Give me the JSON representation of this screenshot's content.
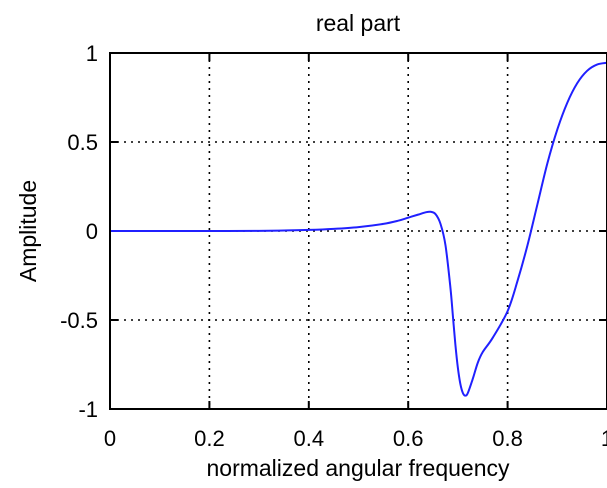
{
  "chart_data": {
    "type": "line",
    "title": "real part",
    "xlabel": "normalized angular frequency",
    "ylabel": "Amplitude",
    "xlim": [
      0,
      1
    ],
    "ylim": [
      -1,
      1
    ],
    "xticks": [
      0,
      0.2,
      0.4,
      0.6,
      0.8,
      1
    ],
    "xtick_labels": [
      "0",
      "0.2",
      "0.4",
      "0.6",
      "0.8",
      "1"
    ],
    "yticks": [
      -1,
      -0.5,
      0,
      0.5,
      1
    ],
    "ytick_labels": [
      "-1",
      "-0.5",
      "0",
      "0.5",
      "1"
    ],
    "grid": true,
    "series": [
      {
        "color": "#2020ff",
        "x": [
          0,
          0.1,
          0.2,
          0.3,
          0.35,
          0.4,
          0.45,
          0.5,
          0.55,
          0.58,
          0.6,
          0.62,
          0.635,
          0.645,
          0.655,
          0.665,
          0.675,
          0.685,
          0.69,
          0.695,
          0.7,
          0.705,
          0.71,
          0.715,
          0.72,
          0.73,
          0.74,
          0.75,
          0.77,
          0.8,
          0.82,
          0.84,
          0.86,
          0.88,
          0.9,
          0.92,
          0.94,
          0.96,
          0.98,
          1.0
        ],
        "y": [
          0,
          0,
          0,
          0.001,
          0.003,
          0.006,
          0.012,
          0.022,
          0.04,
          0.058,
          0.075,
          0.092,
          0.105,
          0.108,
          0.095,
          0.04,
          -0.08,
          -0.32,
          -0.48,
          -0.64,
          -0.77,
          -0.86,
          -0.91,
          -0.925,
          -0.91,
          -0.83,
          -0.74,
          -0.68,
          -0.6,
          -0.45,
          -0.28,
          -0.08,
          0.15,
          0.38,
          0.57,
          0.72,
          0.83,
          0.9,
          0.935,
          0.945
        ]
      }
    ]
  }
}
